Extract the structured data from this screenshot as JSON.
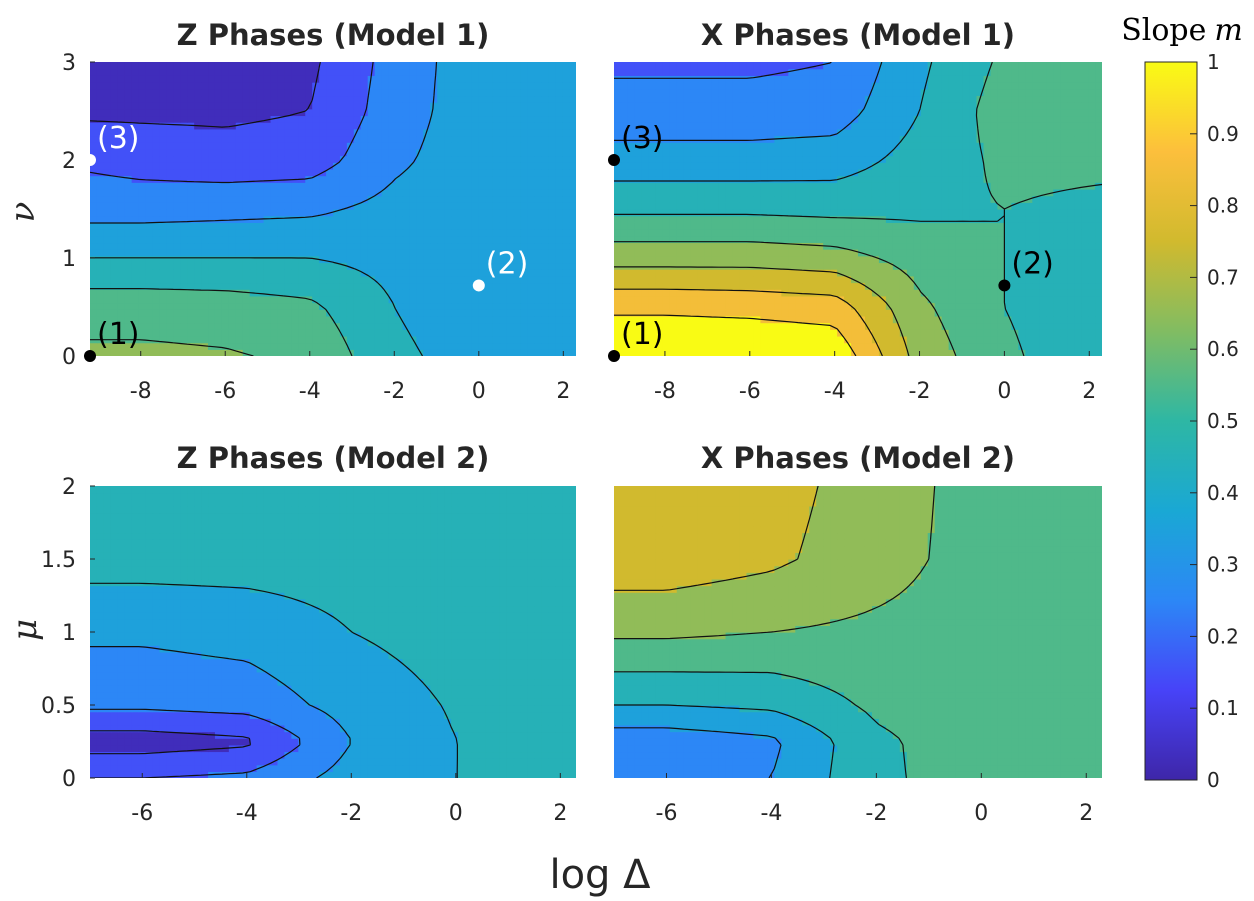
{
  "colorbar": {
    "title": "Slope",
    "title_symbol": "m",
    "ticks": [
      "0",
      "0.1",
      "0.2",
      "0.3",
      "0.4",
      "0.5",
      "0.6",
      "0.7",
      "0.8",
      "0.9",
      "1"
    ],
    "range": [
      0,
      1
    ],
    "colormap": [
      "#3e26a8",
      "#4743f8",
      "#2c87f6",
      "#1aa8d4",
      "#2eb7a4",
      "#81bc62",
      "#d1ba2e",
      "#fcbf3c",
      "#f9fb14"
    ]
  },
  "xlabel": "log Δ",
  "chart_data": [
    {
      "type": "heatmap",
      "title": "Z Phases (Model 1)",
      "ylabel": "ν",
      "x": [
        -9.2,
        -8,
        -6,
        -4,
        -2,
        0,
        2.3
      ],
      "y": [
        0,
        0.5,
        1,
        1.5,
        2,
        2.5,
        3
      ],
      "xticks": [
        "-8",
        "-6",
        "-4",
        "-2",
        "0",
        "2"
      ],
      "yticks": [
        "0",
        "1",
        "2",
        "3"
      ],
      "xlim": [
        -9.2,
        2.3
      ],
      "ylim": [
        0,
        3
      ],
      "z": [
        [
          0.62,
          0.62,
          0.61,
          0.58,
          0.42,
          0.36,
          0.3
        ],
        [
          0.56,
          0.56,
          0.55,
          0.52,
          0.4,
          0.34,
          0.33
        ],
        [
          0.4,
          0.4,
          0.4,
          0.4,
          0.37,
          0.35,
          0.36
        ],
        [
          0.26,
          0.26,
          0.27,
          0.28,
          0.33,
          0.36,
          0.37
        ],
        [
          0.18,
          0.16,
          0.14,
          0.15,
          0.28,
          0.36,
          0.37
        ],
        [
          0.08,
          0.08,
          0.08,
          0.1,
          0.25,
          0.36,
          0.37
        ],
        [
          0.06,
          0.06,
          0.06,
          0.08,
          0.24,
          0.36,
          0.37
        ]
      ],
      "markers": [
        {
          "label": "(1)",
          "x": -9.2,
          "y": 0,
          "color": "black"
        },
        {
          "label": "(2)",
          "x": 0,
          "y": 0.72,
          "color": "white"
        },
        {
          "label": "(3)",
          "x": -9.2,
          "y": 2,
          "color": "white"
        }
      ]
    },
    {
      "type": "heatmap",
      "title": "X Phases (Model 1)",
      "ylabel": "",
      "x": [
        -9.2,
        -8,
        -6,
        -4,
        -2,
        0,
        2.3
      ],
      "y": [
        0,
        0.5,
        1,
        1.5,
        2,
        2.5,
        3
      ],
      "xticks": [
        "-8",
        "-6",
        "-4",
        "-2",
        "0",
        "2"
      ],
      "yticks": [],
      "xlim": [
        -9.2,
        2.3
      ],
      "ylim": [
        0,
        3
      ],
      "z": [
        [
          1.0,
          1.0,
          1.0,
          0.98,
          0.66,
          0.52,
          0.42
        ],
        [
          0.88,
          0.88,
          0.87,
          0.85,
          0.62,
          0.5,
          0.42
        ],
        [
          0.66,
          0.66,
          0.66,
          0.64,
          0.56,
          0.5,
          0.45
        ],
        [
          0.48,
          0.48,
          0.48,
          0.47,
          0.48,
          0.5,
          0.48
        ],
        [
          0.34,
          0.34,
          0.34,
          0.35,
          0.44,
          0.52,
          0.52
        ],
        [
          0.24,
          0.24,
          0.24,
          0.25,
          0.4,
          0.55,
          0.6
        ],
        [
          0.18,
          0.18,
          0.18,
          0.2,
          0.38,
          0.52,
          0.5
        ]
      ],
      "markers": [
        {
          "label": "(1)",
          "x": -9.2,
          "y": 0,
          "color": "black"
        },
        {
          "label": "(2)",
          "x": 0,
          "y": 0.72,
          "color": "black"
        },
        {
          "label": "(3)",
          "x": -9.2,
          "y": 2,
          "color": "black"
        }
      ]
    },
    {
      "type": "heatmap",
      "title": "Z Phases (Model 2)",
      "ylabel": "μ",
      "x": [
        -7,
        -6,
        -4,
        -2,
        0,
        2.3
      ],
      "y": [
        0,
        0.25,
        0.5,
        1,
        1.5,
        2
      ],
      "xticks": [
        "-6",
        "-4",
        "-2",
        "0",
        "2"
      ],
      "yticks": [
        "0",
        "0.5",
        "1",
        "1.5",
        "2"
      ],
      "xlim": [
        -7,
        2.3
      ],
      "ylim": [
        0,
        2
      ],
      "z": [
        [
          0.2,
          0.2,
          0.22,
          0.34,
          0.4,
          0.42
        ],
        [
          0.05,
          0.05,
          0.08,
          0.3,
          0.4,
          0.42
        ],
        [
          0.22,
          0.22,
          0.24,
          0.34,
          0.41,
          0.42
        ],
        [
          0.32,
          0.32,
          0.34,
          0.4,
          0.44,
          0.42
        ],
        [
          0.44,
          0.44,
          0.44,
          0.44,
          0.46,
          0.44
        ],
        [
          0.44,
          0.44,
          0.44,
          0.44,
          0.44,
          0.44
        ]
      ],
      "markers": []
    },
    {
      "type": "heatmap",
      "title": "X Phases (Model 2)",
      "ylabel": "",
      "x": [
        -7,
        -6,
        -4,
        -2,
        0,
        2.3
      ],
      "y": [
        0,
        0.25,
        0.5,
        1,
        1.5,
        2
      ],
      "xticks": [
        "-6",
        "-4",
        "-2",
        "0",
        "2"
      ],
      "yticks": [],
      "xlim": [
        -7,
        2.3
      ],
      "ylim": [
        0,
        2
      ],
      "z": [
        [
          0.26,
          0.26,
          0.3,
          0.48,
          0.55,
          0.52
        ],
        [
          0.24,
          0.24,
          0.28,
          0.48,
          0.56,
          0.52
        ],
        [
          0.4,
          0.4,
          0.42,
          0.52,
          0.56,
          0.52
        ],
        [
          0.62,
          0.62,
          0.6,
          0.58,
          0.56,
          0.52
        ],
        [
          0.76,
          0.76,
          0.72,
          0.64,
          0.56,
          0.52
        ],
        [
          0.78,
          0.78,
          0.74,
          0.65,
          0.56,
          0.52
        ]
      ],
      "markers": []
    }
  ]
}
